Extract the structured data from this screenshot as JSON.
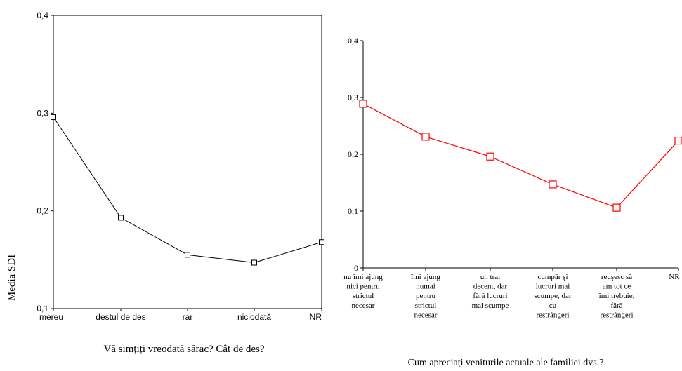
{
  "shared": {
    "ylabel": "Media SDI"
  },
  "chart_data": [
    {
      "type": "line",
      "title": "",
      "xlabel": "Vă simțiți vreodată sărac? Cât de des?",
      "ylabel": "Media SDI",
      "ylim": [
        0.1,
        0.4
      ],
      "yticks": [
        "0,1",
        "0,2",
        "0,3",
        "0,4"
      ],
      "categories": [
        "mereu",
        "destul de des",
        "rar",
        "niciodată",
        "NR"
      ],
      "series": [
        {
          "values": [
            0.296,
            0.193,
            0.155,
            0.147,
            0.168
          ],
          "color": "#000000"
        }
      ],
      "grid": false
    },
    {
      "type": "line",
      "title": "",
      "xlabel": "Cum apreciați veniturile actuale ale familiei dvs.?",
      "ylabel": "",
      "ylim": [
        0,
        0.4
      ],
      "yticks": [
        "0",
        "0,1",
        "0,2",
        "0,3",
        "0,4"
      ],
      "categories": [
        "nu îmi ajung nici pentru strictul necesar",
        "îmi ajung numai pentru strictul necesar",
        "un trai decent, dar fără lucruri mai scumpe",
        "cumpăr şi lucruri mai scumpe, dar cu restrângeri",
        "reuşesc să am tot ce îmi trebuie, fără restrângeri",
        "NR"
      ],
      "category_lines": [
        [
          "nu îmi ajung",
          "nici pentru",
          "strictul",
          "necesar"
        ],
        [
          "îmi ajung",
          "numai",
          "pentru",
          "strictul",
          "necesar"
        ],
        [
          "un trai",
          "decent, dar",
          "fără lucruri",
          "mai scumpe"
        ],
        [
          "cumpăr şi",
          "lucruri mai",
          "scumpe, dar",
          "cu",
          "restrângeri"
        ],
        [
          "reuşesc să",
          "am tot ce",
          "îmi trebuie,",
          "fără",
          "restrângeri"
        ],
        [
          "NR"
        ]
      ],
      "series": [
        {
          "values": [
            0.289,
            0.231,
            0.196,
            0.147,
            0.106,
            0.224
          ],
          "color": "#ff0000"
        }
      ],
      "grid": false
    }
  ]
}
